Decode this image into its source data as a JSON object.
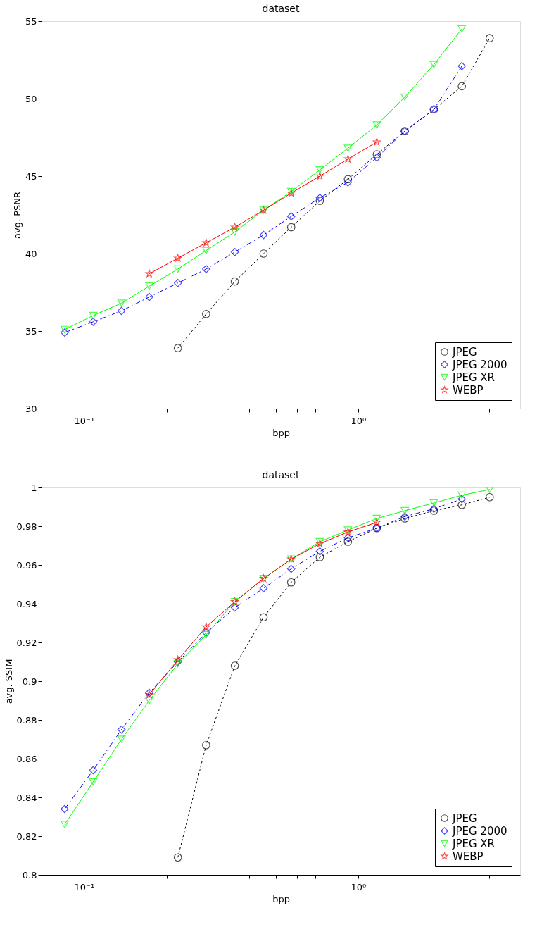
{
  "chart_data": [
    {
      "type": "line",
      "title": "dataset",
      "xlabel": "bpp",
      "ylabel": "avg. PSNR",
      "log": "x",
      "grid": false,
      "legend": "bottom right",
      "x": [
        0.085,
        0.108,
        0.137,
        0.173,
        0.22,
        0.279,
        0.355,
        0.452,
        0.57,
        0.725,
        0.918,
        1.17,
        1.48,
        1.89,
        2.39,
        3.02
      ],
      "xlim": [
        0.07,
        3.9
      ],
      "xticks": [
        {
          "value": 0.08,
          "label": null
        },
        {
          "value": 0.09,
          "label": null
        },
        {
          "value": 0.1,
          "label": "10⁻¹"
        },
        {
          "value": 0.2,
          "label": null
        },
        {
          "value": 0.3,
          "label": null
        },
        {
          "value": 0.4,
          "label": null
        },
        {
          "value": 0.5,
          "label": null
        },
        {
          "value": 0.6,
          "label": null
        },
        {
          "value": 0.7,
          "label": null
        },
        {
          "value": 0.8,
          "label": null
        },
        {
          "value": 0.9,
          "label": null
        },
        {
          "value": 1,
          "label": "10⁰"
        },
        {
          "value": 2,
          "label": null
        },
        {
          "value": 3,
          "label": null
        }
      ],
      "ylim": [
        30,
        55
      ],
      "yticks": [
        30,
        35,
        40,
        45,
        50,
        55
      ],
      "series": [
        {
          "name": "JPEG",
          "color": "#000000",
          "marker": "circle",
          "line_style": "dotted",
          "values": [
            null,
            null,
            null,
            null,
            33.9,
            36.1,
            38.2,
            40.0,
            41.7,
            43.4,
            44.8,
            46.4,
            47.9,
            49.3,
            50.8,
            53.9
          ]
        },
        {
          "name": "JPEG 2000",
          "color": "#0000ff",
          "marker": "diamond",
          "line_style": "dashed",
          "values": [
            34.9,
            35.6,
            36.3,
            37.2,
            38.1,
            39.0,
            40.1,
            41.2,
            42.4,
            43.6,
            44.6,
            46.2,
            47.9,
            49.3,
            52.1,
            null
          ]
        },
        {
          "name": "JPEG XR",
          "color": "#00ff00",
          "marker": "triangle",
          "line_style": "solid",
          "values": [
            35.1,
            36.0,
            36.8,
            37.9,
            39.0,
            40.2,
            41.4,
            42.8,
            44.0,
            45.4,
            46.8,
            48.3,
            50.1,
            52.2,
            54.5,
            null
          ]
        },
        {
          "name": "WEBP",
          "color": "#ff0000",
          "marker": "star",
          "line_style": "solid",
          "values": [
            null,
            null,
            null,
            38.7,
            39.7,
            40.7,
            41.7,
            42.8,
            43.9,
            45.0,
            46.1,
            47.2,
            null,
            null,
            null,
            null
          ]
        }
      ]
    },
    {
      "type": "line",
      "title": "dataset",
      "xlabel": "bpp",
      "ylabel": "avg. SSIM",
      "log": "x",
      "grid": false,
      "legend": "bottom right",
      "x": [
        0.085,
        0.108,
        0.137,
        0.173,
        0.22,
        0.279,
        0.355,
        0.452,
        0.57,
        0.725,
        0.918,
        1.17,
        1.48,
        1.89,
        2.39,
        3.02
      ],
      "xlim": [
        0.07,
        3.9
      ],
      "xticks": [
        {
          "value": 0.08,
          "label": null
        },
        {
          "value": 0.09,
          "label": null
        },
        {
          "value": 0.1,
          "label": "10⁻¹"
        },
        {
          "value": 0.2,
          "label": null
        },
        {
          "value": 0.3,
          "label": null
        },
        {
          "value": 0.4,
          "label": null
        },
        {
          "value": 0.5,
          "label": null
        },
        {
          "value": 0.6,
          "label": null
        },
        {
          "value": 0.7,
          "label": null
        },
        {
          "value": 0.8,
          "label": null
        },
        {
          "value": 0.9,
          "label": null
        },
        {
          "value": 1,
          "label": "10⁰"
        },
        {
          "value": 2,
          "label": null
        },
        {
          "value": 3,
          "label": null
        }
      ],
      "ylim": [
        0.8,
        1
      ],
      "yticks": [
        0.8,
        0.82,
        0.84,
        0.86,
        0.88,
        0.9,
        0.92,
        0.94,
        0.96,
        0.98,
        1
      ],
      "series": [
        {
          "name": "JPEG",
          "color": "#000000",
          "marker": "circle",
          "line_style": "dotted",
          "values": [
            null,
            null,
            null,
            null,
            0.809,
            0.867,
            0.908,
            0.933,
            0.951,
            0.964,
            0.972,
            0.979,
            0.984,
            0.988,
            0.991,
            0.995
          ]
        },
        {
          "name": "JPEG 2000",
          "color": "#0000ff",
          "marker": "diamond",
          "line_style": "dashed",
          "values": [
            0.834,
            0.854,
            0.875,
            0.894,
            0.91,
            0.925,
            0.938,
            0.948,
            0.958,
            0.967,
            0.974,
            0.979,
            0.985,
            0.989,
            0.994,
            null
          ]
        },
        {
          "name": "JPEG XR",
          "color": "#00ff00",
          "marker": "triangle",
          "line_style": "solid",
          "values": [
            0.826,
            0.848,
            0.87,
            0.89,
            0.909,
            0.924,
            0.941,
            0.953,
            0.963,
            0.972,
            0.978,
            0.984,
            0.988,
            0.992,
            0.996,
            0.999
          ]
        },
        {
          "name": "WEBP",
          "color": "#ff0000",
          "marker": "star",
          "line_style": "solid",
          "values": [
            null,
            null,
            null,
            0.893,
            0.911,
            0.928,
            0.941,
            0.953,
            0.963,
            0.971,
            0.977,
            0.982,
            null,
            null,
            null,
            null
          ]
        }
      ]
    }
  ]
}
